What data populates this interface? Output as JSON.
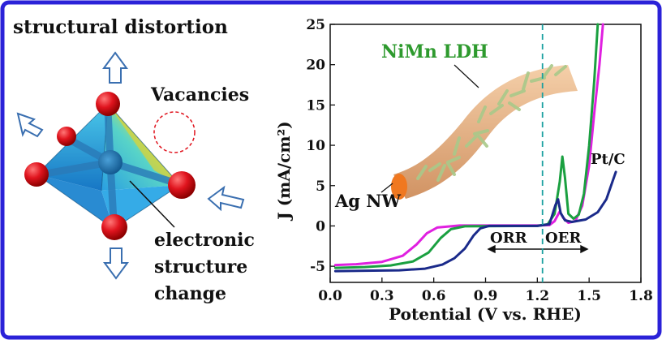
{
  "left_panel": {
    "label_distortion": "structural distortion",
    "label_vacancies": "Vacancies",
    "label_electronic": [
      "electronic",
      "structure",
      "change"
    ],
    "colors": {
      "arrow_outline": "#3a6fb0",
      "atom": "#e0141e",
      "octa_blue": "#1e9ae0",
      "octa_yellow": "#f3e21b"
    }
  },
  "right_panel": {
    "inset_label_ldh": "NiMn LDH",
    "inset_label_agnw": "Ag NW",
    "region_orr": "ORR",
    "region_oer": "OER",
    "colors": {
      "ldh_text": "#2e9a2e",
      "nanowire": "#d9a070",
      "nanowire_end": "#f07820",
      "platelet": "#a9c98a"
    }
  },
  "chart_data": {
    "type": "line",
    "xlabel": "Potential (V vs. RHE)",
    "ylabel": "J (mA/cm²)",
    "xlim": [
      0.0,
      1.8
    ],
    "ylim": [
      -7,
      25
    ],
    "xticks": [
      "0.0",
      "0.3",
      "0.6",
      "0.9",
      "1.2",
      "1.5",
      "1.8"
    ],
    "yticks": [
      "-5",
      "0",
      "5",
      "10",
      "15",
      "20",
      "25"
    ],
    "vline_x": 1.23,
    "annotations": [
      "Pt/C"
    ],
    "series": [
      {
        "color": "#e020e0",
        "points": [
          [
            0.03,
            -4.85
          ],
          [
            0.15,
            -4.75
          ],
          [
            0.3,
            -4.45
          ],
          [
            0.42,
            -3.7
          ],
          [
            0.5,
            -2.3
          ],
          [
            0.56,
            -0.9
          ],
          [
            0.62,
            -0.2
          ],
          [
            0.75,
            0.05
          ],
          [
            1.2,
            0.05
          ],
          [
            1.27,
            0.1
          ],
          [
            1.3,
            0.6
          ],
          [
            1.33,
            1.8
          ],
          [
            1.35,
            1.0
          ],
          [
            1.38,
            0.4
          ],
          [
            1.42,
            0.6
          ],
          [
            1.46,
            2.5
          ],
          [
            1.5,
            7.5
          ],
          [
            1.53,
            14
          ],
          [
            1.56,
            20
          ],
          [
            1.58,
            25
          ]
        ]
      },
      {
        "color": "#1aa040",
        "points": [
          [
            0.03,
            -5.2
          ],
          [
            0.2,
            -5.1
          ],
          [
            0.35,
            -4.9
          ],
          [
            0.48,
            -4.4
          ],
          [
            0.57,
            -3.3
          ],
          [
            0.64,
            -1.5
          ],
          [
            0.7,
            -0.4
          ],
          [
            0.78,
            -0.05
          ],
          [
            1.2,
            0.0
          ],
          [
            1.26,
            0.2
          ],
          [
            1.3,
            1.5
          ],
          [
            1.33,
            5.5
          ],
          [
            1.345,
            8.6
          ],
          [
            1.36,
            6
          ],
          [
            1.38,
            1.5
          ],
          [
            1.41,
            0.9
          ],
          [
            1.44,
            1.4
          ],
          [
            1.47,
            4
          ],
          [
            1.5,
            10
          ],
          [
            1.53,
            18
          ],
          [
            1.55,
            25
          ]
        ]
      },
      {
        "color": "#1a2a8a",
        "points": [
          [
            0.03,
            -5.6
          ],
          [
            0.2,
            -5.55
          ],
          [
            0.4,
            -5.5
          ],
          [
            0.55,
            -5.3
          ],
          [
            0.65,
            -4.8
          ],
          [
            0.72,
            -4
          ],
          [
            0.78,
            -2.8
          ],
          [
            0.83,
            -1.2
          ],
          [
            0.87,
            -0.3
          ],
          [
            0.92,
            0.0
          ],
          [
            1.2,
            0.0
          ],
          [
            1.27,
            0.2
          ],
          [
            1.305,
            2.6
          ],
          [
            1.32,
            3.3
          ],
          [
            1.335,
            1.6
          ],
          [
            1.36,
            0.7
          ],
          [
            1.4,
            0.5
          ],
          [
            1.48,
            0.8
          ],
          [
            1.55,
            1.7
          ],
          [
            1.6,
            3.3
          ],
          [
            1.64,
            5.8
          ],
          [
            1.655,
            6.7
          ]
        ]
      }
    ]
  }
}
